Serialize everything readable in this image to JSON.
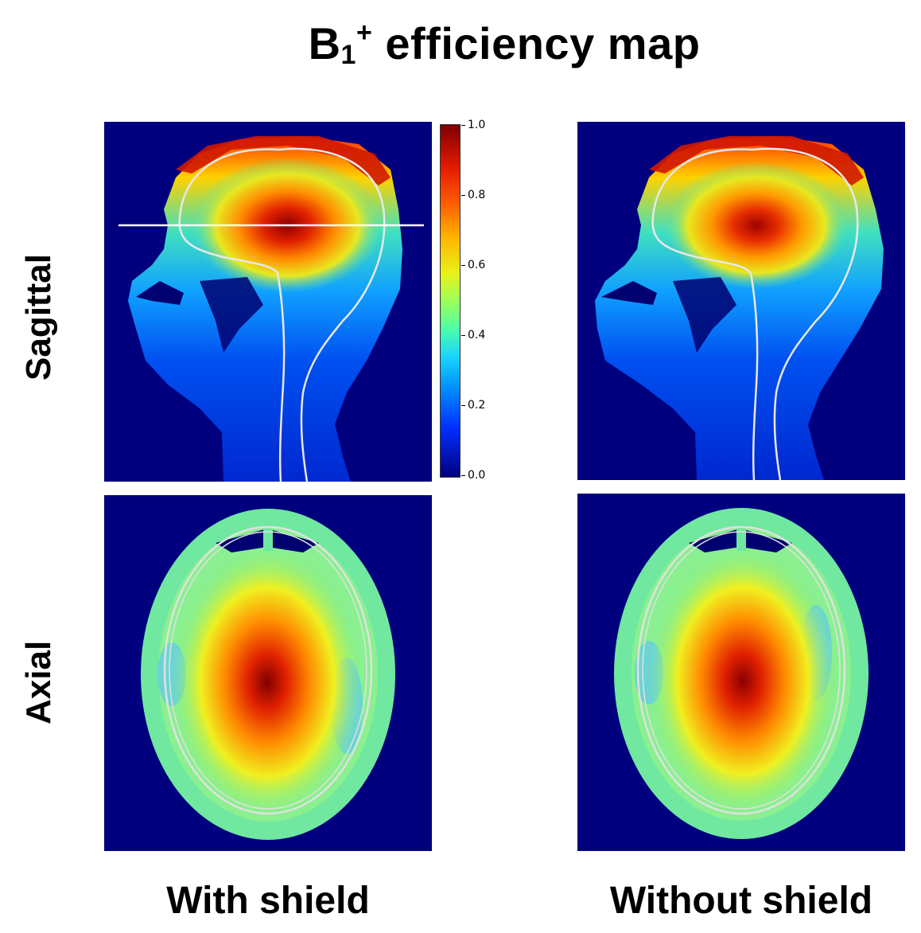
{
  "title": {
    "main": "B",
    "subscript": "1",
    "superscript": "+",
    "rest": " efficiency map"
  },
  "row_labels": {
    "top": "Sagittal",
    "bottom": "Axial"
  },
  "column_labels": {
    "left": "With shield",
    "right": "Without shield"
  },
  "colorbar": {
    "colormap": "jet",
    "range": [
      0.0,
      1.0
    ],
    "ticks": [
      "1.0",
      "0.8",
      "0.6",
      "0.4",
      "0.2",
      "0.0"
    ]
  },
  "colors": {
    "background": "#00007f",
    "contour": "#e8e8e8",
    "cut_line": "#ffffff"
  }
}
